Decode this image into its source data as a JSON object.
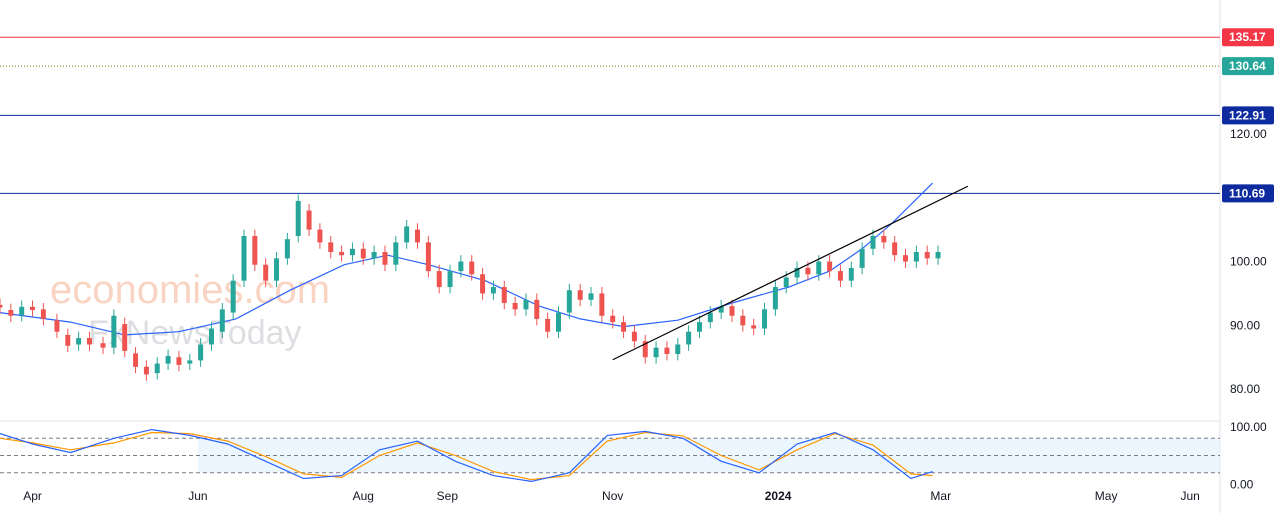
{
  "watermark": {
    "line1": "economies.com",
    "line2": "FxNewsToday"
  },
  "colors": {
    "up": "#26a69a",
    "down": "#ef5350",
    "ma": "#2962ff",
    "level": "#0d2a9e",
    "resistance": "#f23645",
    "last": "#26a69a",
    "trend": "#000000",
    "k_line": "#2962ff",
    "d_line": "#ff9800",
    "band": "#e3f2fd"
  },
  "chart_data": [
    {
      "type": "candlestick",
      "title": "",
      "x_start": "2023-03-20",
      "x_end": "2024-06-12",
      "ylim": [
        75,
        141
      ],
      "y_ticks": [
        80,
        90,
        100,
        120
      ],
      "price_levels": [
        {
          "label": "135.17",
          "value": 135.17,
          "role": "resistance"
        },
        {
          "label": "130.64",
          "value": 130.64,
          "role": "last-price"
        },
        {
          "label": "122.91",
          "value": 122.91,
          "role": "level"
        },
        {
          "label": "110.69",
          "value": 110.69,
          "role": "level"
        }
      ],
      "x_ticks": [
        {
          "label": "Apr",
          "date": "2023-04-01"
        },
        {
          "label": "Jun",
          "date": "2023-06-01"
        },
        {
          "label": "Aug",
          "date": "2023-08-01"
        },
        {
          "label": "Sep",
          "date": "2023-09-01"
        },
        {
          "label": "Nov",
          "date": "2023-11-01"
        },
        {
          "label": "2024",
          "date": "2024-01-01",
          "bold": true
        },
        {
          "label": "Mar",
          "date": "2024-03-01"
        },
        {
          "label": "May",
          "date": "2024-05-01"
        },
        {
          "label": "Jun",
          "date": "2024-06-01"
        }
      ],
      "trendline": [
        {
          "date": "2023-11-01",
          "value": 84.6
        },
        {
          "date": "2024-03-11",
          "value": 111.8
        }
      ],
      "moving_average": [
        {
          "date": "2023-03-20",
          "value": 92.0
        },
        {
          "date": "2023-04-15",
          "value": 90.5
        },
        {
          "date": "2023-05-05",
          "value": 88.5
        },
        {
          "date": "2023-05-25",
          "value": 89.0
        },
        {
          "date": "2023-06-15",
          "value": 91.0
        },
        {
          "date": "2023-07-05",
          "value": 95.5
        },
        {
          "date": "2023-07-25",
          "value": 99.5
        },
        {
          "date": "2023-08-10",
          "value": 101.0
        },
        {
          "date": "2023-08-25",
          "value": 99.5
        },
        {
          "date": "2023-09-15",
          "value": 97.0
        },
        {
          "date": "2023-10-05",
          "value": 93.0
        },
        {
          "date": "2023-10-20",
          "value": 91.0
        },
        {
          "date": "2023-11-05",
          "value": 89.8
        },
        {
          "date": "2023-11-25",
          "value": 90.8
        },
        {
          "date": "2023-12-15",
          "value": 93.5
        },
        {
          "date": "2024-01-05",
          "value": 96.0
        },
        {
          "date": "2024-01-20",
          "value": 98.5
        },
        {
          "date": "2024-02-01",
          "value": 102.0
        },
        {
          "date": "2024-02-12",
          "value": 106.0
        },
        {
          "date": "2024-02-27",
          "value": 112.3
        }
      ],
      "candles": [
        [
          "2023-03-20",
          93.2,
          92.8
        ],
        [
          "2023-03-24",
          92.4,
          91.5
        ],
        [
          "2023-03-28",
          91.6,
          92.9
        ],
        [
          "2023-04-01",
          92.9,
          92.4
        ],
        [
          "2023-04-05",
          92.5,
          91.0
        ],
        [
          "2023-04-10",
          90.8,
          89.0
        ],
        [
          "2023-04-14",
          88.5,
          86.8
        ],
        [
          "2023-04-18",
          87.0,
          88.0
        ],
        [
          "2023-04-22",
          88.0,
          87.0
        ],
        [
          "2023-04-27",
          87.2,
          86.5
        ],
        [
          "2023-05-01",
          86.5,
          91.5
        ],
        [
          "2023-05-05",
          90.2,
          86.0
        ],
        [
          "2023-05-09",
          85.6,
          83.5
        ],
        [
          "2023-05-13",
          83.5,
          82.3
        ],
        [
          "2023-05-17",
          82.5,
          84.0
        ],
        [
          "2023-05-21",
          84.0,
          85.2
        ],
        [
          "2023-05-25",
          85.0,
          83.8
        ],
        [
          "2023-05-29",
          84.0,
          84.5
        ],
        [
          "2023-06-02",
          84.5,
          87.0
        ],
        [
          "2023-06-06",
          87.0,
          89.5
        ],
        [
          "2023-06-10",
          89.0,
          92.5
        ],
        [
          "2023-06-14",
          92.0,
          97.0
        ],
        [
          "2023-06-18",
          97.0,
          104.0
        ],
        [
          "2023-06-22",
          104.0,
          99.5
        ],
        [
          "2023-06-26",
          99.5,
          97.0
        ],
        [
          "2023-06-30",
          97.0,
          100.5
        ],
        [
          "2023-07-04",
          100.5,
          103.5
        ],
        [
          "2023-07-08",
          104.0,
          109.5
        ],
        [
          "2023-07-12",
          108.0,
          105.0
        ],
        [
          "2023-07-16",
          105.0,
          103.0
        ],
        [
          "2023-07-20",
          103.0,
          101.5
        ],
        [
          "2023-07-24",
          101.5,
          101.0
        ],
        [
          "2023-07-28",
          101.0,
          102.0
        ],
        [
          "2023-08-01",
          102.0,
          100.5
        ],
        [
          "2023-08-05",
          100.5,
          101.5
        ],
        [
          "2023-08-09",
          101.5,
          99.5
        ],
        [
          "2023-08-13",
          99.5,
          103.0
        ],
        [
          "2023-08-17",
          103.0,
          105.5
        ],
        [
          "2023-08-21",
          105.0,
          103.0
        ],
        [
          "2023-08-25",
          103.0,
          98.5
        ],
        [
          "2023-08-29",
          98.5,
          96.0
        ],
        [
          "2023-09-02",
          96.0,
          98.5
        ],
        [
          "2023-09-06",
          98.5,
          100.0
        ],
        [
          "2023-09-10",
          100.0,
          98.0
        ],
        [
          "2023-09-14",
          98.0,
          95.0
        ],
        [
          "2023-09-18",
          95.0,
          96.0
        ],
        [
          "2023-09-22",
          96.0,
          93.5
        ],
        [
          "2023-09-26",
          93.5,
          92.5
        ],
        [
          "2023-09-30",
          92.5,
          94.0
        ],
        [
          "2023-10-04",
          94.0,
          91.0
        ],
        [
          "2023-10-08",
          91.0,
          89.0
        ],
        [
          "2023-10-12",
          89.0,
          92.0
        ],
        [
          "2023-10-16",
          92.0,
          95.5
        ],
        [
          "2023-10-20",
          95.5,
          94.0
        ],
        [
          "2023-10-24",
          94.0,
          95.0
        ],
        [
          "2023-10-28",
          95.0,
          91.5
        ],
        [
          "2023-11-01",
          91.5,
          90.5
        ],
        [
          "2023-11-05",
          90.5,
          89.0
        ],
        [
          "2023-11-09",
          89.0,
          87.5
        ],
        [
          "2023-11-13",
          87.5,
          85.0
        ],
        [
          "2023-11-17",
          85.0,
          86.5
        ],
        [
          "2023-11-21",
          86.5,
          85.5
        ],
        [
          "2023-11-25",
          85.5,
          87.0
        ],
        [
          "2023-11-29",
          87.0,
          89.0
        ],
        [
          "2023-12-03",
          89.0,
          90.5
        ],
        [
          "2023-12-07",
          90.5,
          92.0
        ],
        [
          "2023-12-11",
          92.0,
          93.0
        ],
        [
          "2023-12-15",
          93.0,
          91.5
        ],
        [
          "2023-12-19",
          91.5,
          90.0
        ],
        [
          "2023-12-23",
          90.0,
          89.5
        ],
        [
          "2023-12-27",
          89.5,
          92.5
        ],
        [
          "2023-12-31",
          92.5,
          96.0
        ],
        [
          "2024-01-04",
          96.0,
          97.5
        ],
        [
          "2024-01-08",
          97.5,
          99.0
        ],
        [
          "2024-01-12",
          99.0,
          98.0
        ],
        [
          "2024-01-16",
          98.0,
          100.0
        ],
        [
          "2024-01-20",
          100.0,
          98.5
        ],
        [
          "2024-01-24",
          98.5,
          97.0
        ],
        [
          "2024-01-28",
          97.0,
          99.0
        ],
        [
          "2024-02-01",
          99.0,
          102.0
        ],
        [
          "2024-02-05",
          102.0,
          104.0
        ],
        [
          "2024-02-09",
          104.0,
          103.0
        ],
        [
          "2024-02-13",
          103.0,
          101.0
        ],
        [
          "2024-02-17",
          101.0,
          100.0
        ],
        [
          "2024-02-21",
          100.0,
          101.5
        ],
        [
          "2024-02-25",
          101.5,
          100.5
        ],
        [
          "2024-02-29",
          100.5,
          101.5
        ]
      ],
      "candle_note": "o,c pairs per date"
    },
    {
      "type": "line",
      "title": "",
      "ylim": [
        -10,
        110
      ],
      "y_ticks": [
        100.0,
        0.0
      ],
      "y_tick_labels": [
        "100.00",
        "0.00"
      ],
      "band": [
        20,
        80
      ],
      "k_series": [
        [
          "2023-03-20",
          88
        ],
        [
          "2023-04-01",
          70
        ],
        [
          "2023-04-15",
          55
        ],
        [
          "2023-05-01",
          80
        ],
        [
          "2023-05-15",
          95
        ],
        [
          "2023-05-29",
          85
        ],
        [
          "2023-06-12",
          70
        ],
        [
          "2023-06-26",
          40
        ],
        [
          "2023-07-10",
          10
        ],
        [
          "2023-07-24",
          15
        ],
        [
          "2023-08-07",
          60
        ],
        [
          "2023-08-21",
          75
        ],
        [
          "2023-09-04",
          40
        ],
        [
          "2023-09-18",
          15
        ],
        [
          "2023-10-02",
          5
        ],
        [
          "2023-10-16",
          20
        ],
        [
          "2023-10-30",
          85
        ],
        [
          "2023-11-13",
          92
        ],
        [
          "2023-11-27",
          80
        ],
        [
          "2023-12-11",
          40
        ],
        [
          "2023-12-25",
          20
        ],
        [
          "2024-01-08",
          70
        ],
        [
          "2024-01-22",
          90
        ],
        [
          "2024-02-05",
          60
        ],
        [
          "2024-02-19",
          10
        ],
        [
          "2024-02-27",
          22
        ]
      ],
      "d_series": [
        [
          "2023-03-20",
          80
        ],
        [
          "2023-04-01",
          72
        ],
        [
          "2023-04-15",
          60
        ],
        [
          "2023-05-01",
          72
        ],
        [
          "2023-05-15",
          90
        ],
        [
          "2023-05-29",
          88
        ],
        [
          "2023-06-12",
          75
        ],
        [
          "2023-06-26",
          48
        ],
        [
          "2023-07-10",
          18
        ],
        [
          "2023-07-24",
          12
        ],
        [
          "2023-08-07",
          50
        ],
        [
          "2023-08-21",
          72
        ],
        [
          "2023-09-04",
          50
        ],
        [
          "2023-09-18",
          22
        ],
        [
          "2023-10-02",
          8
        ],
        [
          "2023-10-16",
          15
        ],
        [
          "2023-10-30",
          75
        ],
        [
          "2023-11-13",
          90
        ],
        [
          "2023-11-27",
          84
        ],
        [
          "2023-12-11",
          50
        ],
        [
          "2023-12-25",
          25
        ],
        [
          "2024-01-08",
          60
        ],
        [
          "2024-01-22",
          88
        ],
        [
          "2024-02-05",
          68
        ],
        [
          "2024-02-19",
          18
        ],
        [
          "2024-02-27",
          15
        ]
      ]
    }
  ]
}
